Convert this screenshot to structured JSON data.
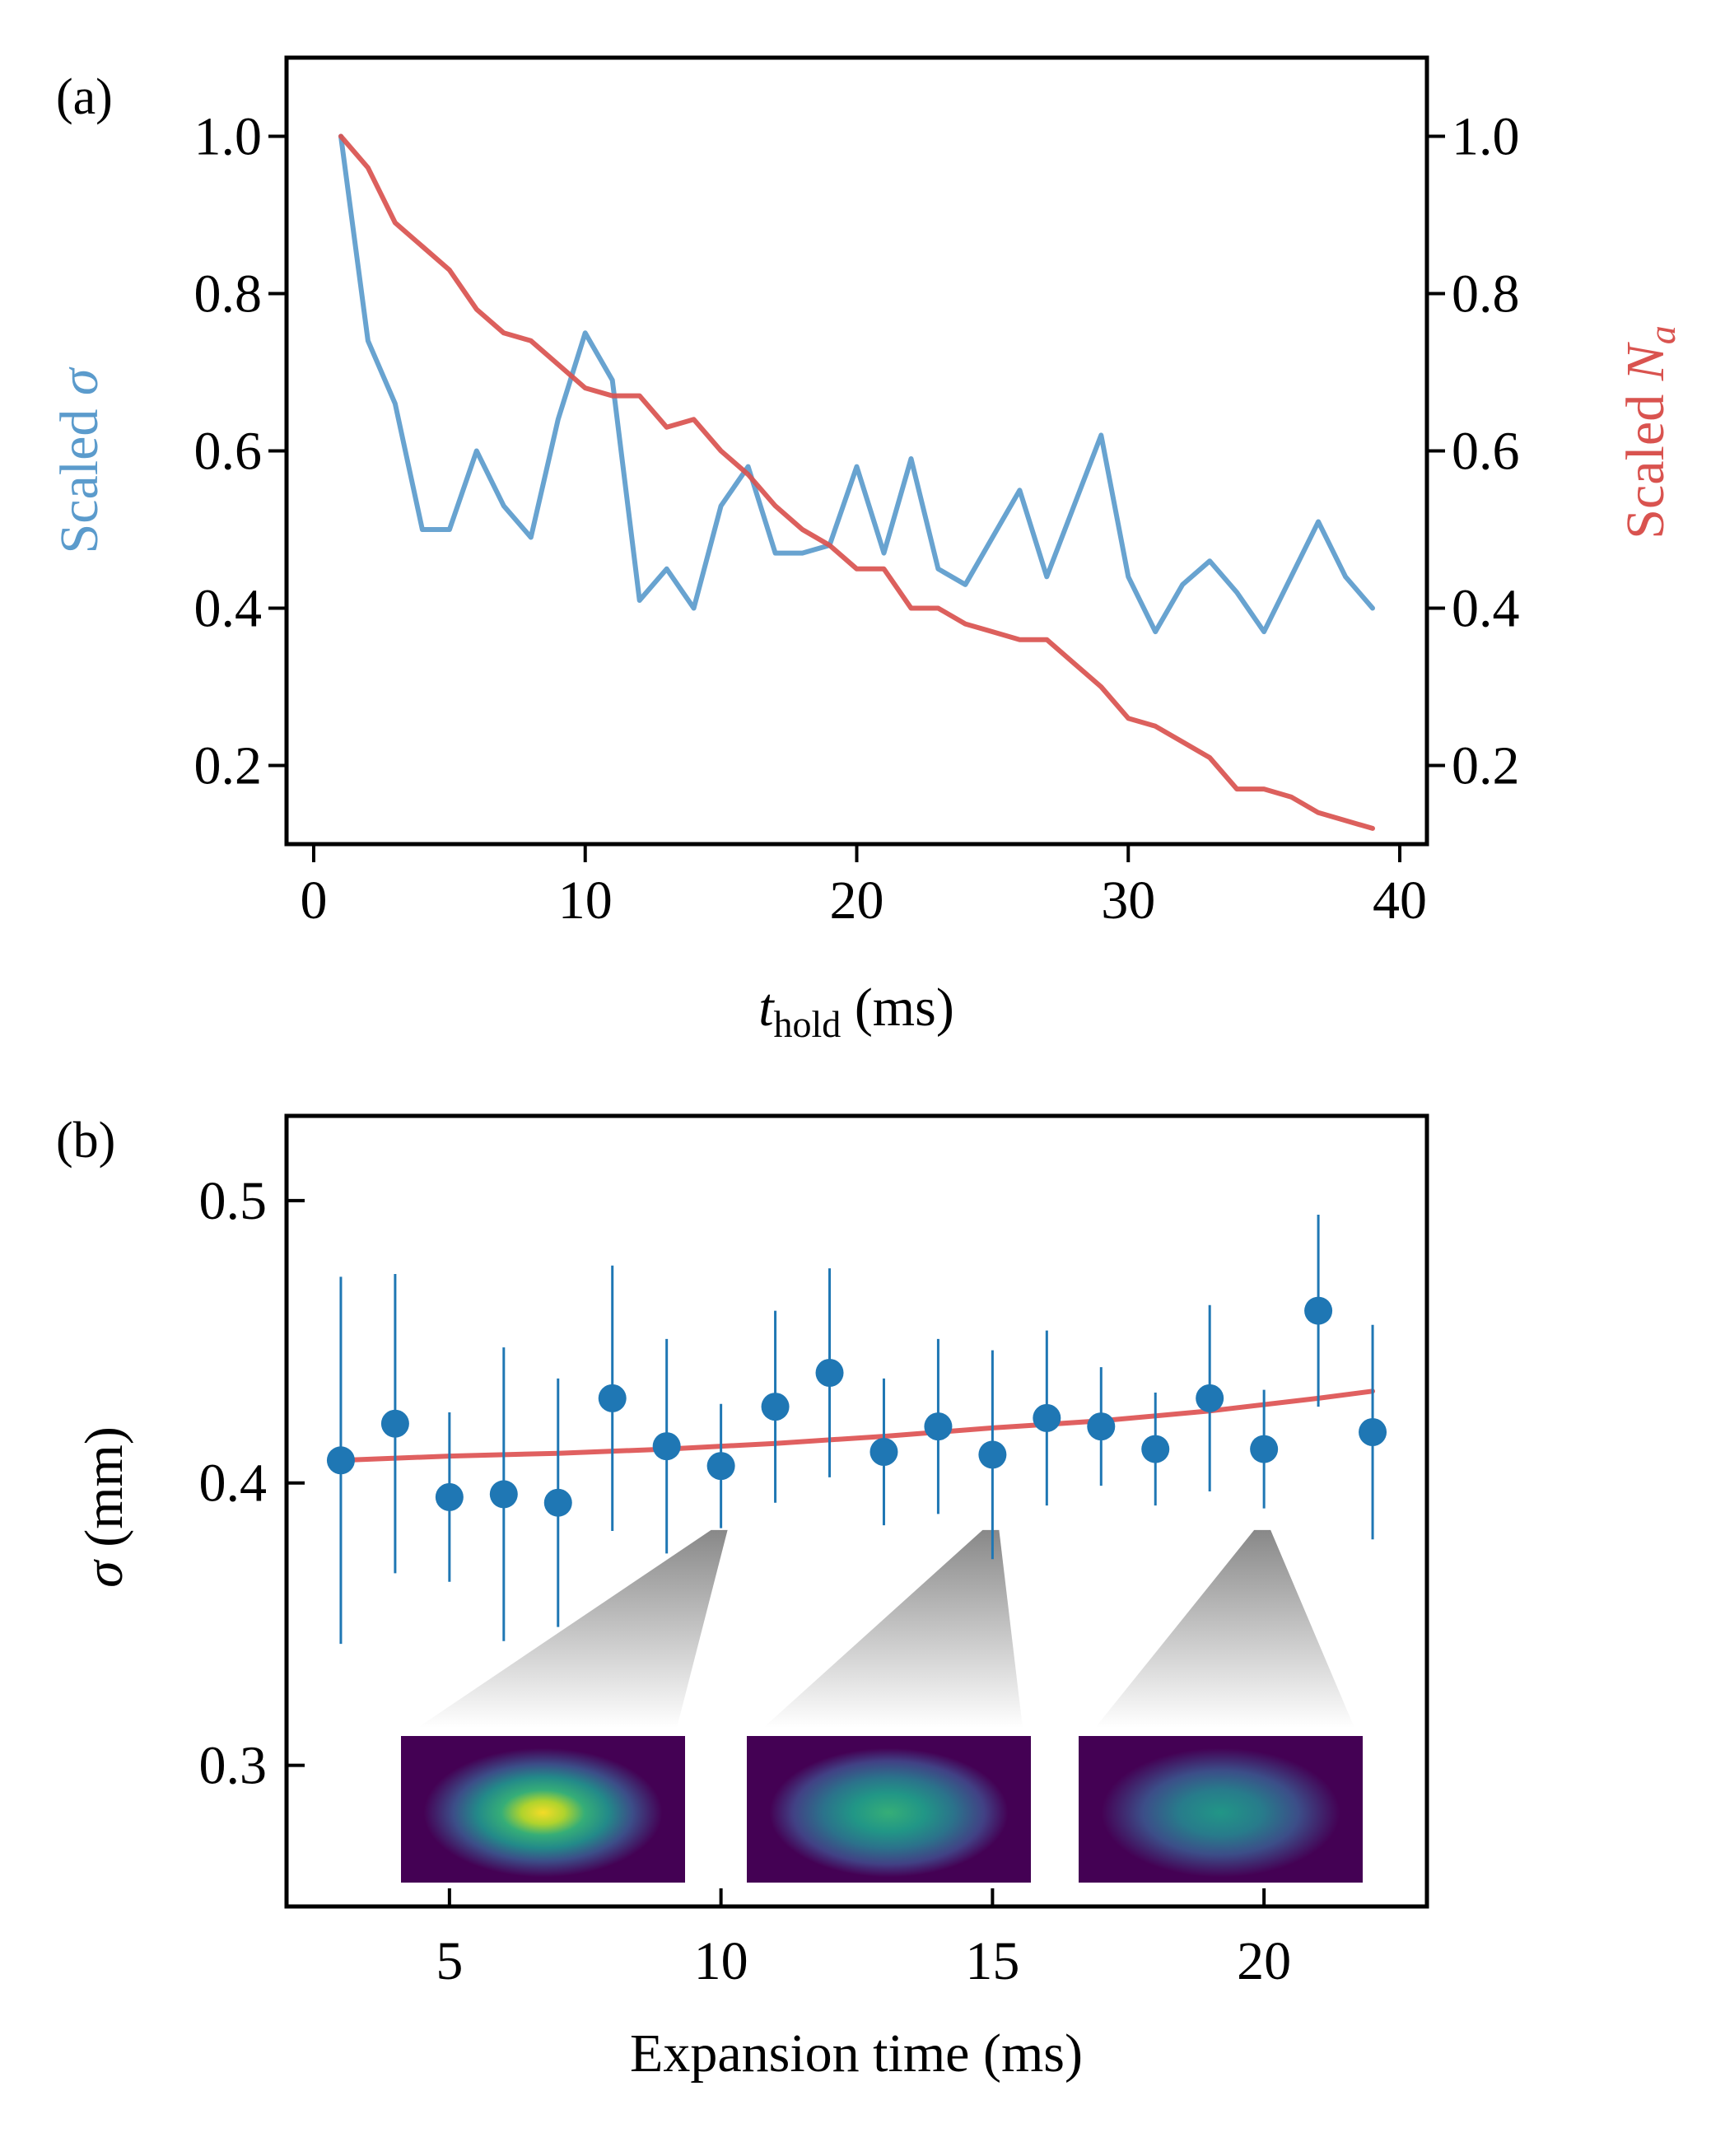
{
  "colors": {
    "blue": "#5B9BCC",
    "red": "#D9534F",
    "marker": "#1F77B4",
    "fit": "#E06060"
  },
  "chart_data": [
    {
      "panel_label": "(a)",
      "type": "line",
      "xlabel_main": "t",
      "xlabel_sub": "hold",
      "xlabel_tail": " (ms)",
      "ylabel_left_text": "Scaled ",
      "ylabel_left_sym": "σ",
      "ylabel_right_text": "Scaled ",
      "ylabel_right_sym": "N",
      "ylabel_right_sub": "a",
      "xlim": [
        -1,
        41
      ],
      "ylim": [
        0.1,
        1.1
      ],
      "xticks": [
        0,
        10,
        20,
        30,
        40
      ],
      "xtick_labels": [
        "0",
        "10",
        "20",
        "30",
        "40"
      ],
      "yticks": [
        0.2,
        0.4,
        0.6,
        0.8,
        1.0
      ],
      "ytick_labels": [
        "0.2",
        "0.4",
        "0.6",
        "0.8",
        "1.0"
      ],
      "series": [
        {
          "name": "Scaled σ",
          "color": "#5B9BCC",
          "x": [
            1,
            2,
            3,
            4,
            5,
            6,
            7,
            8,
            9,
            10,
            11,
            12,
            13,
            14,
            15,
            16,
            17,
            18,
            19,
            20,
            21,
            22,
            23,
            24,
            25,
            26,
            27,
            28,
            29,
            30,
            31,
            32,
            33,
            34,
            35,
            36,
            37,
            38,
            39
          ],
          "values": [
            1.0,
            0.74,
            0.66,
            0.5,
            0.5,
            0.6,
            0.53,
            0.49,
            0.64,
            0.75,
            0.69,
            0.41,
            0.45,
            0.4,
            0.53,
            0.58,
            0.47,
            0.47,
            0.48,
            0.58,
            0.47,
            0.59,
            0.45,
            0.43,
            0.49,
            0.55,
            0.44,
            0.53,
            0.62,
            0.44,
            0.37,
            0.43,
            0.46,
            0.42,
            0.37,
            0.44,
            0.51,
            0.44,
            0.4
          ]
        },
        {
          "name": "Scaled Na",
          "color": "#D9534F",
          "x": [
            1,
            2,
            3,
            4,
            5,
            6,
            7,
            8,
            9,
            10,
            11,
            12,
            13,
            14,
            15,
            16,
            17,
            18,
            19,
            20,
            21,
            22,
            23,
            24,
            25,
            26,
            27,
            28,
            29,
            30,
            31,
            32,
            33,
            34,
            35,
            36,
            37,
            38,
            39
          ],
          "values": [
            1.0,
            0.96,
            0.89,
            0.86,
            0.83,
            0.78,
            0.75,
            0.74,
            0.71,
            0.68,
            0.67,
            0.67,
            0.63,
            0.64,
            0.6,
            0.57,
            0.53,
            0.5,
            0.48,
            0.45,
            0.45,
            0.4,
            0.4,
            0.38,
            0.37,
            0.36,
            0.36,
            0.33,
            0.3,
            0.26,
            0.25,
            0.23,
            0.21,
            0.17,
            0.17,
            0.16,
            0.14,
            0.13,
            0.12
          ]
        }
      ]
    },
    {
      "panel_label": "(b)",
      "type": "scatter",
      "xlabel": "Expansion time (ms)",
      "ylabel_sym": "σ",
      "ylabel_text": " (mm)",
      "xlim": [
        2,
        23
      ],
      "ylim": [
        0.25,
        0.53
      ],
      "xticks": [
        5,
        10,
        15,
        20
      ],
      "xtick_labels": [
        "5",
        "10",
        "15",
        "20"
      ],
      "yticks": [
        0.3,
        0.4,
        0.5
      ],
      "ytick_labels": [
        "0.3",
        "0.4",
        "0.5"
      ],
      "points": {
        "x": [
          3,
          4,
          5,
          6,
          7,
          8,
          9,
          10,
          11,
          12,
          13,
          14,
          15,
          16,
          17,
          18,
          19,
          20,
          21,
          22
        ],
        "y": [
          0.408,
          0.421,
          0.395,
          0.396,
          0.393,
          0.43,
          0.413,
          0.406,
          0.427,
          0.439,
          0.411,
          0.42,
          0.41,
          0.423,
          0.42,
          0.412,
          0.43,
          0.412,
          0.461,
          0.418
        ],
        "yerr": [
          0.065,
          0.053,
          0.03,
          0.052,
          0.044,
          0.047,
          0.038,
          0.022,
          0.034,
          0.037,
          0.026,
          0.031,
          0.037,
          0.031,
          0.021,
          0.02,
          0.033,
          0.021,
          0.034,
          0.038
        ]
      },
      "fit": {
        "x": [
          3,
          5,
          7,
          9,
          11,
          13,
          15,
          17,
          19,
          21,
          22
        ],
        "y": [
          0.408,
          0.4095,
          0.4105,
          0.412,
          0.414,
          0.4165,
          0.4195,
          0.422,
          0.4255,
          0.43,
          0.4325
        ]
      },
      "insets": [
        {
          "name": "cloud-image-10ms",
          "anchor_x": 10,
          "peak": 1.0
        },
        {
          "name": "cloud-image-15ms",
          "anchor_x": 15,
          "peak": 0.62
        },
        {
          "name": "cloud-image-20ms",
          "anchor_x": 20,
          "peak": 0.45
        }
      ]
    }
  ]
}
